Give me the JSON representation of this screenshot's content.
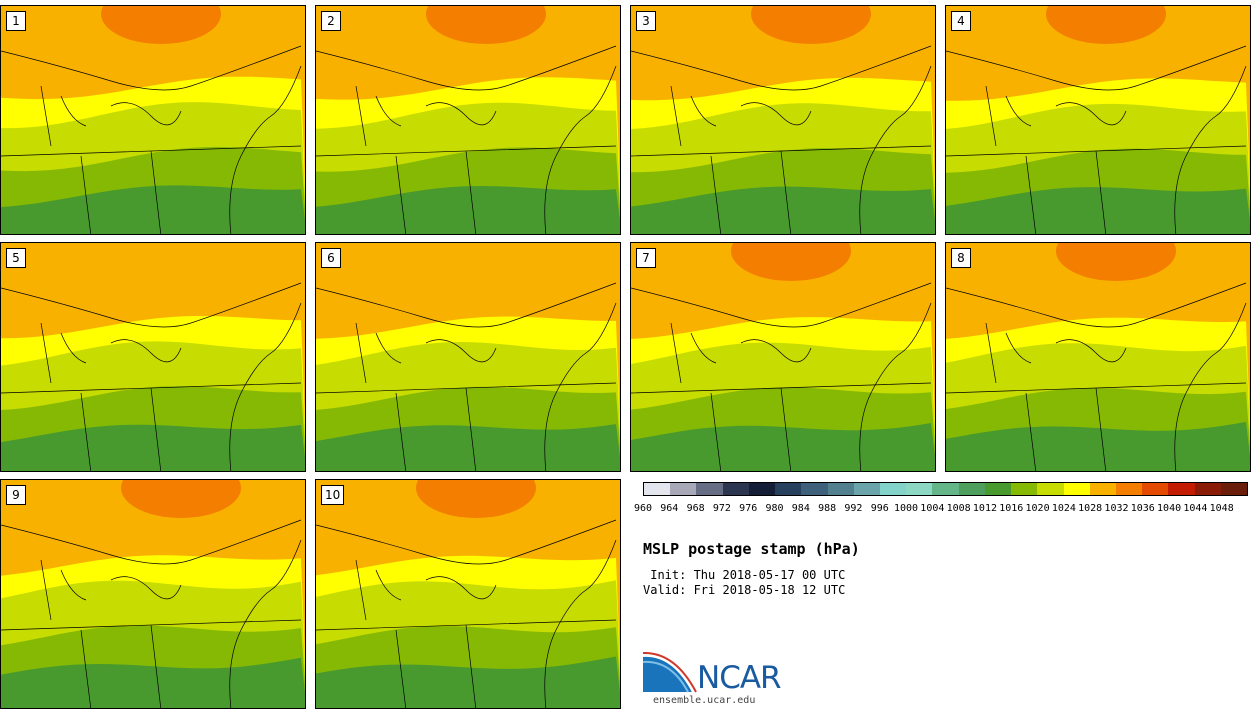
{
  "panels": [
    {
      "label": "1",
      "fill": "#f9b100",
      "high": "#f47e00"
    },
    {
      "label": "2",
      "fill": "#f9b100",
      "high": "#f47e00"
    },
    {
      "label": "3",
      "fill": "#f9b100",
      "high": "#f47e00"
    },
    {
      "label": "4",
      "fill": "#f9b100",
      "high": "#f47e00"
    },
    {
      "label": "5",
      "fill": "#f9b100",
      "high": "#f9b100"
    },
    {
      "label": "6",
      "fill": "#f9b100",
      "high": "#f9b100"
    },
    {
      "label": "7",
      "fill": "#f9b100",
      "high": "#f47e00"
    },
    {
      "label": "8",
      "fill": "#f9b100",
      "high": "#f47e00"
    },
    {
      "label": "9",
      "fill": "#f9b100",
      "high": "#f47e00"
    },
    {
      "label": "10",
      "fill": "#f9b100",
      "high": "#f47e00"
    }
  ],
  "colorbar": {
    "colors": [
      "#e4e6ee",
      "#a7a9b9",
      "#666d84",
      "#2d3650",
      "#141e37",
      "#27405e",
      "#3e607a",
      "#52808f",
      "#6ba4ab",
      "#84d3cb",
      "#8dd8c2",
      "#64b587",
      "#4e9e5d",
      "#489a2e",
      "#86b904",
      "#c7dc00",
      "#ffff00",
      "#f9b100",
      "#f47e00",
      "#e54b00",
      "#c31c00",
      "#8a1b06",
      "#6b1d0c"
    ],
    "ticks": [
      "960",
      "964",
      "968",
      "972",
      "976",
      "980",
      "984",
      "988",
      "992",
      "996",
      "1000",
      "1004",
      "1008",
      "1012",
      "1016",
      "1020",
      "1024",
      "1028",
      "1032",
      "1036",
      "1040",
      "1044",
      "1048"
    ]
  },
  "title": "MSLP postage stamp (hPa)",
  "init": " Init: Thu 2018-05-17 00 UTC",
  "valid": "Valid: Fri 2018-05-18 12 UTC",
  "logo_text": "NCAR",
  "url": "ensemble.ucar.edu"
}
